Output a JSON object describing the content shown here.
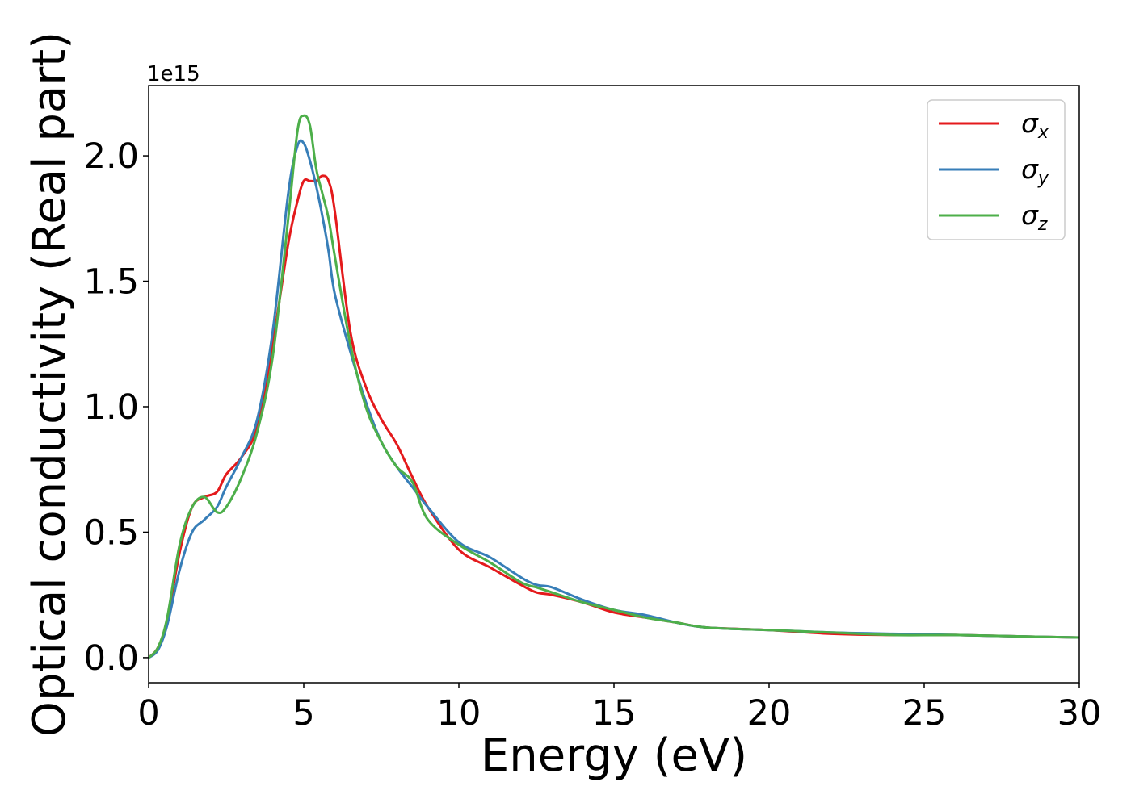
{
  "chart_data": {
    "type": "line",
    "title": "",
    "xlabel": "Energy (eV)",
    "ylabel": "Optical conductivity (Real part)",
    "y_offset_label": "1e15",
    "xlim": [
      0,
      30
    ],
    "ylim": [
      -0.1,
      2.28
    ],
    "x_ticks": [
      0,
      5,
      10,
      15,
      20,
      25,
      30
    ],
    "x_tick_labels": [
      "0",
      "5",
      "10",
      "15",
      "20",
      "25",
      "30"
    ],
    "y_ticks": [
      0.0,
      0.5,
      1.0,
      1.5,
      2.0
    ],
    "y_tick_labels": [
      "0.0",
      "0.5",
      "1.0",
      "1.5",
      "2.0"
    ],
    "grid": false,
    "legend_position": "top-right",
    "series": [
      {
        "name": "σx",
        "legend_base": "σ",
        "legend_sub": "x",
        "color": "#e41a1c",
        "x": [
          0,
          0.3,
          0.6,
          1.0,
          1.4,
          1.8,
          2.2,
          2.5,
          3.0,
          3.5,
          4.0,
          4.5,
          4.8,
          5.0,
          5.2,
          5.4,
          5.6,
          5.8,
          6.0,
          6.5,
          7.0,
          7.5,
          8.0,
          8.5,
          9.0,
          10.0,
          11.0,
          12.0,
          12.5,
          13.0,
          14.0,
          15.0,
          16.0,
          17.0,
          18.0,
          20.0,
          22.0,
          24.0,
          26.0,
          28.0,
          30.0
        ],
        "y": [
          0.0,
          0.04,
          0.15,
          0.42,
          0.6,
          0.64,
          0.66,
          0.73,
          0.8,
          0.92,
          1.25,
          1.65,
          1.82,
          1.9,
          1.9,
          1.9,
          1.92,
          1.9,
          1.78,
          1.3,
          1.08,
          0.95,
          0.85,
          0.72,
          0.6,
          0.43,
          0.36,
          0.29,
          0.26,
          0.25,
          0.22,
          0.18,
          0.16,
          0.14,
          0.12,
          0.11,
          0.095,
          0.09,
          0.09,
          0.085,
          0.08
        ]
      },
      {
        "name": "σy",
        "legend_base": "σ",
        "legend_sub": "y",
        "color": "#377eb8",
        "x": [
          0,
          0.3,
          0.6,
          1.0,
          1.4,
          1.8,
          2.2,
          2.5,
          3.0,
          3.5,
          4.0,
          4.5,
          4.8,
          5.0,
          5.2,
          5.4,
          5.6,
          5.8,
          6.0,
          6.5,
          7.0,
          7.5,
          8.0,
          8.5,
          9.0,
          10.0,
          11.0,
          12.0,
          12.5,
          13.0,
          14.0,
          15.0,
          16.0,
          17.0,
          18.0,
          20.0,
          22.0,
          24.0,
          26.0,
          28.0,
          30.0
        ],
        "y": [
          0.0,
          0.03,
          0.13,
          0.35,
          0.5,
          0.55,
          0.6,
          0.68,
          0.8,
          0.95,
          1.3,
          1.85,
          2.04,
          2.05,
          1.98,
          1.88,
          1.76,
          1.62,
          1.45,
          1.22,
          1.02,
          0.86,
          0.76,
          0.68,
          0.6,
          0.46,
          0.4,
          0.32,
          0.29,
          0.28,
          0.23,
          0.19,
          0.17,
          0.14,
          0.12,
          0.11,
          0.1,
          0.095,
          0.09,
          0.085,
          0.08
        ]
      },
      {
        "name": "σz",
        "legend_base": "σ",
        "legend_sub": "z",
        "color": "#4daf4a",
        "x": [
          0,
          0.3,
          0.6,
          1.0,
          1.4,
          1.8,
          2.2,
          2.5,
          3.0,
          3.5,
          4.0,
          4.5,
          4.8,
          5.0,
          5.2,
          5.4,
          5.6,
          5.8,
          6.0,
          6.5,
          7.0,
          7.5,
          8.0,
          8.5,
          9.0,
          10.0,
          11.0,
          12.0,
          12.5,
          13.0,
          14.0,
          15.0,
          16.0,
          17.0,
          18.0,
          20.0,
          22.0,
          24.0,
          26.0,
          28.0,
          30.0
        ],
        "y": [
          0.0,
          0.04,
          0.16,
          0.45,
          0.6,
          0.64,
          0.58,
          0.6,
          0.72,
          0.9,
          1.2,
          1.75,
          2.1,
          2.16,
          2.12,
          1.95,
          1.85,
          1.75,
          1.6,
          1.25,
          1.0,
          0.86,
          0.76,
          0.7,
          0.55,
          0.45,
          0.38,
          0.3,
          0.28,
          0.26,
          0.22,
          0.19,
          0.16,
          0.14,
          0.12,
          0.11,
          0.1,
          0.09,
          0.09,
          0.085,
          0.08
        ]
      }
    ]
  }
}
